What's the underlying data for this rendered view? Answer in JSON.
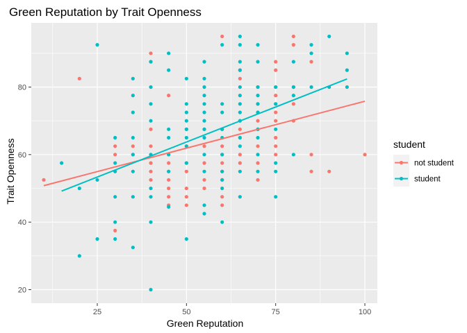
{
  "chart_data": {
    "type": "scatter",
    "title": "Green Reputation by Trait Openness",
    "xlabel": "Green Reputation",
    "ylabel": "Trait Openness",
    "xlim": [
      6.5,
      103.5
    ],
    "ylim": [
      16,
      99
    ],
    "xticks": [
      25,
      50,
      75,
      100
    ],
    "yticks": [
      20,
      40,
      60,
      80
    ],
    "grid": true,
    "legend": {
      "title": "student",
      "position": "right"
    },
    "series": [
      {
        "name": "not student",
        "color": "#F8766D",
        "points": [
          [
            10,
            52.5
          ],
          [
            20,
            82.5
          ],
          [
            30,
            60
          ],
          [
            30,
            62.5
          ],
          [
            30,
            37.5
          ],
          [
            35,
            60
          ],
          [
            35,
            62.5
          ],
          [
            40,
            90
          ],
          [
            40,
            87.5
          ],
          [
            40,
            67.5
          ],
          [
            40,
            62.5
          ],
          [
            40,
            57.5
          ],
          [
            40,
            55
          ],
          [
            40,
            52.5
          ],
          [
            45,
            77.5
          ],
          [
            45,
            60
          ],
          [
            45,
            57.5
          ],
          [
            45,
            55
          ],
          [
            45,
            52.5
          ],
          [
            45,
            50
          ],
          [
            45,
            47.5
          ],
          [
            45,
            45
          ],
          [
            50,
            67.5
          ],
          [
            50,
            62.5
          ],
          [
            50,
            57.5
          ],
          [
            50,
            55
          ],
          [
            50,
            50
          ],
          [
            50,
            47.5
          ],
          [
            50,
            45
          ],
          [
            55,
            67.5
          ],
          [
            55,
            62.5
          ],
          [
            55,
            57.5
          ],
          [
            55,
            52.5
          ],
          [
            55,
            50
          ],
          [
            60,
            95
          ],
          [
            60,
            67.5
          ],
          [
            60,
            62.5
          ],
          [
            60,
            60
          ],
          [
            60,
            57.5
          ],
          [
            60,
            55
          ],
          [
            60,
            52.5
          ],
          [
            60,
            47.5
          ],
          [
            60,
            45
          ],
          [
            65,
            85
          ],
          [
            65,
            82.5
          ],
          [
            65,
            70
          ],
          [
            65,
            67.5
          ],
          [
            65,
            65
          ],
          [
            65,
            60
          ],
          [
            65,
            57.5
          ],
          [
            70,
            80
          ],
          [
            70,
            75
          ],
          [
            70,
            72.5
          ],
          [
            70,
            70
          ],
          [
            70,
            67.5
          ],
          [
            70,
            62.5
          ],
          [
            70,
            57.5
          ],
          [
            70,
            52.5
          ],
          [
            75,
            87.5
          ],
          [
            75,
            85
          ],
          [
            75,
            80
          ],
          [
            75,
            77.5
          ],
          [
            75,
            75
          ],
          [
            75,
            72.5
          ],
          [
            75,
            70
          ],
          [
            75,
            65
          ],
          [
            75,
            62.5
          ],
          [
            75,
            60
          ],
          [
            80,
            95
          ],
          [
            80,
            92.5
          ],
          [
            80,
            80
          ],
          [
            80,
            75
          ],
          [
            80,
            70
          ],
          [
            85,
            87.5
          ],
          [
            85,
            60
          ],
          [
            85,
            55
          ],
          [
            90,
            55
          ],
          [
            100,
            60
          ]
        ],
        "trend": {
          "x": [
            10,
            100
          ],
          "y": [
            50.8,
            75.8
          ]
        }
      },
      {
        "name": "student",
        "color": "#00BFC4",
        "points": [
          [
            15,
            57.5
          ],
          [
            20,
            50
          ],
          [
            20,
            30
          ],
          [
            25,
            92.5
          ],
          [
            25,
            52.5
          ],
          [
            25,
            35
          ],
          [
            30,
            65
          ],
          [
            30,
            57.5
          ],
          [
            30,
            55
          ],
          [
            30,
            47.5
          ],
          [
            30,
            40
          ],
          [
            30,
            35
          ],
          [
            35,
            82.5
          ],
          [
            35,
            77.5
          ],
          [
            35,
            72.5
          ],
          [
            35,
            65
          ],
          [
            35,
            60
          ],
          [
            35,
            55
          ],
          [
            35,
            47.5
          ],
          [
            35,
            32.5
          ],
          [
            40,
            87.5
          ],
          [
            40,
            80
          ],
          [
            40,
            75
          ],
          [
            40,
            70
          ],
          [
            40,
            60
          ],
          [
            40,
            50
          ],
          [
            40,
            47.5
          ],
          [
            40,
            40
          ],
          [
            40,
            20
          ],
          [
            45,
            90
          ],
          [
            45,
            85
          ],
          [
            45,
            67.5
          ],
          [
            45,
            65
          ],
          [
            45,
            60
          ],
          [
            45,
            55
          ],
          [
            45,
            44.5
          ],
          [
            50,
            82.5
          ],
          [
            50,
            75
          ],
          [
            50,
            72.5
          ],
          [
            50,
            70
          ],
          [
            50,
            67.5
          ],
          [
            50,
            65
          ],
          [
            50,
            62.5
          ],
          [
            50,
            57.5
          ],
          [
            50,
            35
          ],
          [
            55,
            87.5
          ],
          [
            55,
            82.5
          ],
          [
            55,
            80
          ],
          [
            55,
            77.5
          ],
          [
            55,
            75
          ],
          [
            55,
            72.5
          ],
          [
            55,
            70
          ],
          [
            55,
            67.5
          ],
          [
            55,
            65
          ],
          [
            55,
            60
          ],
          [
            55,
            55
          ],
          [
            55,
            45
          ],
          [
            55,
            42.5
          ],
          [
            60,
            92.5
          ],
          [
            60,
            75
          ],
          [
            60,
            72.5
          ],
          [
            60,
            67.5
          ],
          [
            60,
            65
          ],
          [
            60,
            60
          ],
          [
            60,
            55
          ],
          [
            60,
            52.5
          ],
          [
            60,
            50
          ],
          [
            60,
            40
          ],
          [
            65,
            95
          ],
          [
            65,
            92.5
          ],
          [
            65,
            87.5
          ],
          [
            65,
            85
          ],
          [
            65,
            80
          ],
          [
            65,
            77.5
          ],
          [
            65,
            75
          ],
          [
            65,
            72.5
          ],
          [
            65,
            70
          ],
          [
            65,
            65
          ],
          [
            65,
            62.5
          ],
          [
            65,
            55
          ],
          [
            65,
            47.5
          ],
          [
            70,
            92.5
          ],
          [
            70,
            87.5
          ],
          [
            70,
            80
          ],
          [
            70,
            77.5
          ],
          [
            70,
            75
          ],
          [
            70,
            72.5
          ],
          [
            70,
            67.5
          ],
          [
            70,
            65
          ],
          [
            70,
            60
          ],
          [
            70,
            55
          ],
          [
            75,
            80
          ],
          [
            75,
            75
          ],
          [
            75,
            67.5
          ],
          [
            75,
            57.5
          ],
          [
            75,
            55
          ],
          [
            75,
            47.5
          ],
          [
            80,
            87.5
          ],
          [
            80,
            80
          ],
          [
            80,
            77.5
          ],
          [
            80,
            60
          ],
          [
            85,
            92.5
          ],
          [
            85,
            90
          ],
          [
            85,
            80
          ],
          [
            90,
            95
          ],
          [
            90,
            80
          ],
          [
            95,
            90
          ],
          [
            95,
            85
          ],
          [
            95,
            80
          ]
        ],
        "trend": {
          "x": [
            15,
            95
          ],
          "y": [
            49.2,
            82.4
          ]
        }
      }
    ]
  }
}
